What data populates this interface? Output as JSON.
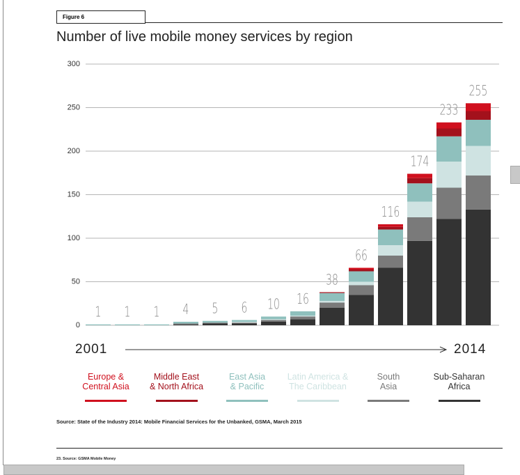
{
  "figure_label": "Figure 6",
  "footnote": "23. Source: GSMA Mobile Money",
  "chart_data": {
    "type": "stacked_bar",
    "title": "Number of live mobile money services by region",
    "x_start": "2001",
    "x_end": "2014",
    "source": "Source: State of the Industry 2014: Mobile Financial Services for the Unbanked, GSMA, March 2015",
    "categories": [
      null,
      null,
      null,
      null,
      null,
      null,
      null,
      null,
      null,
      null,
      null,
      null,
      null,
      null
    ],
    "totals": [
      1,
      1,
      1,
      4,
      5,
      6,
      10,
      16,
      38,
      66,
      116,
      174,
      233,
      255
    ],
    "ylim": [
      0,
      300
    ],
    "yticks": [
      0,
      50,
      100,
      150,
      200,
      250,
      300
    ],
    "grid": true,
    "series": [
      {
        "name": "Europe &\nCentral Asia",
        "color": "#d0101e",
        "values": [
          0,
          0,
          0,
          0,
          0,
          0,
          0,
          0,
          0,
          2,
          3,
          5,
          7,
          9
        ]
      },
      {
        "name": "Middle East\n& North Africa",
        "color": "#a3111c",
        "values": [
          0,
          0,
          0,
          0,
          0,
          0,
          0,
          0,
          1,
          2,
          3,
          6,
          9,
          10
        ]
      },
      {
        "name": "East Asia\n& Pacific",
        "color": "#8fc0bd",
        "values": [
          1,
          1,
          1,
          2,
          2,
          2,
          3,
          5,
          9,
          12,
          18,
          21,
          29,
          30
        ]
      },
      {
        "name": "Latin America &\nThe Caribbean",
        "color": "#cfe3e2",
        "values": [
          0,
          0,
          0,
          0,
          0,
          1,
          1,
          1,
          2,
          4,
          12,
          18,
          30,
          34
        ]
      },
      {
        "name": "South\nAsia",
        "color": "#7a7a7a",
        "values": [
          0,
          0,
          0,
          1,
          1,
          1,
          2,
          3,
          6,
          11,
          14,
          27,
          36,
          39
        ]
      },
      {
        "name": "Sub-Saharan\nAfrica",
        "color": "#333333",
        "values": [
          0,
          0,
          0,
          1,
          2,
          2,
          4,
          7,
          20,
          35,
          66,
          97,
          122,
          133
        ]
      }
    ]
  }
}
